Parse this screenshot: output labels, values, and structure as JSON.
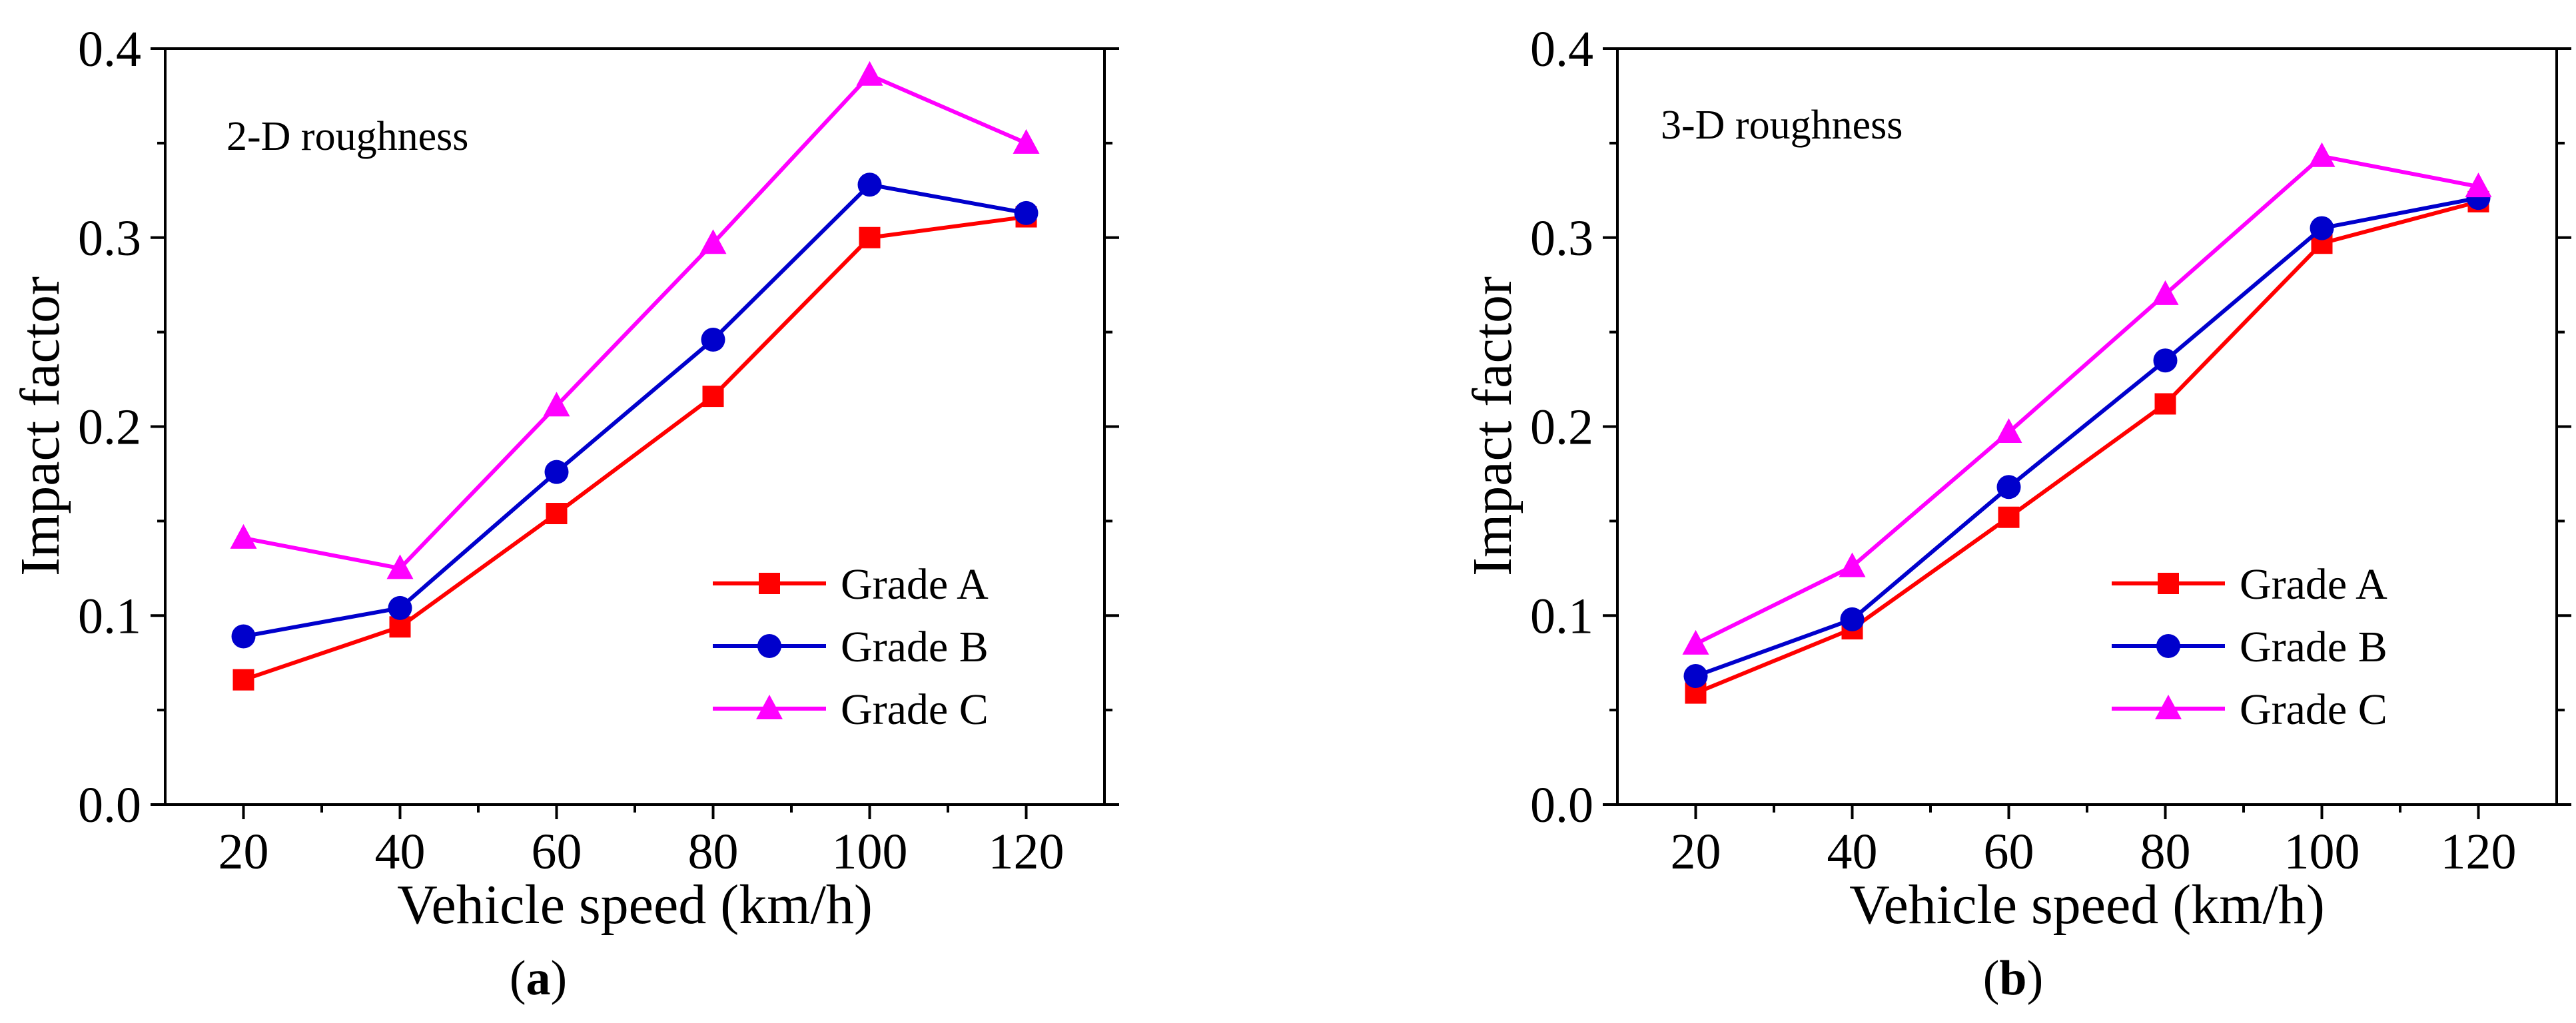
{
  "chart_data": [
    {
      "type": "line",
      "panel": "a",
      "caption": "(a)",
      "caption_open": "(",
      "caption_letter": "a",
      "caption_close": ")",
      "annotation": "2-D roughness",
      "xlabel": "Vehicle speed (km/h)",
      "ylabel": "Impact factor",
      "x": [
        20,
        40,
        60,
        80,
        100,
        120
      ],
      "xticks": [
        "20",
        "40",
        "60",
        "80",
        "100",
        "120"
      ],
      "yticks": [
        "0.0",
        "0.1",
        "0.2",
        "0.3",
        "0.4"
      ],
      "xlim": [
        10,
        130
      ],
      "ylim": [
        0,
        0.4
      ],
      "legend_position": "lower-right",
      "series": [
        {
          "name": "Grade A",
          "color": "#ff0000",
          "marker": "square",
          "values": [
            0.066,
            0.094,
            0.154,
            0.216,
            0.3,
            0.311
          ]
        },
        {
          "name": "Grade B",
          "color": "#0000cc",
          "marker": "circle",
          "values": [
            0.089,
            0.104,
            0.176,
            0.246,
            0.328,
            0.313
          ]
        },
        {
          "name": "Grade C",
          "color": "#ff00ff",
          "marker": "triangle",
          "values": [
            0.141,
            0.125,
            0.211,
            0.297,
            0.386,
            0.35
          ]
        }
      ]
    },
    {
      "type": "line",
      "panel": "b",
      "caption": "(b)",
      "caption_open": "(",
      "caption_letter": "b",
      "caption_close": ")",
      "annotation": "3-D roughness",
      "xlabel": "Vehicle speed (km/h)",
      "ylabel": "Impact factor",
      "x": [
        20,
        40,
        60,
        80,
        100,
        120
      ],
      "xticks": [
        "20",
        "40",
        "60",
        "80",
        "100",
        "120"
      ],
      "yticks": [
        "0.0",
        "0.1",
        "0.2",
        "0.3",
        "0.4"
      ],
      "xlim": [
        10,
        130
      ],
      "ylim": [
        0,
        0.4
      ],
      "legend_position": "lower-right",
      "series": [
        {
          "name": "Grade A",
          "color": "#ff0000",
          "marker": "square",
          "values": [
            0.059,
            0.093,
            0.152,
            0.212,
            0.297,
            0.319
          ]
        },
        {
          "name": "Grade B",
          "color": "#0000cc",
          "marker": "circle",
          "values": [
            0.068,
            0.098,
            0.168,
            0.235,
            0.305,
            0.321
          ]
        },
        {
          "name": "Grade C",
          "color": "#ff00ff",
          "marker": "triangle",
          "values": [
            0.085,
            0.126,
            0.197,
            0.27,
            0.343,
            0.327
          ]
        }
      ]
    }
  ]
}
